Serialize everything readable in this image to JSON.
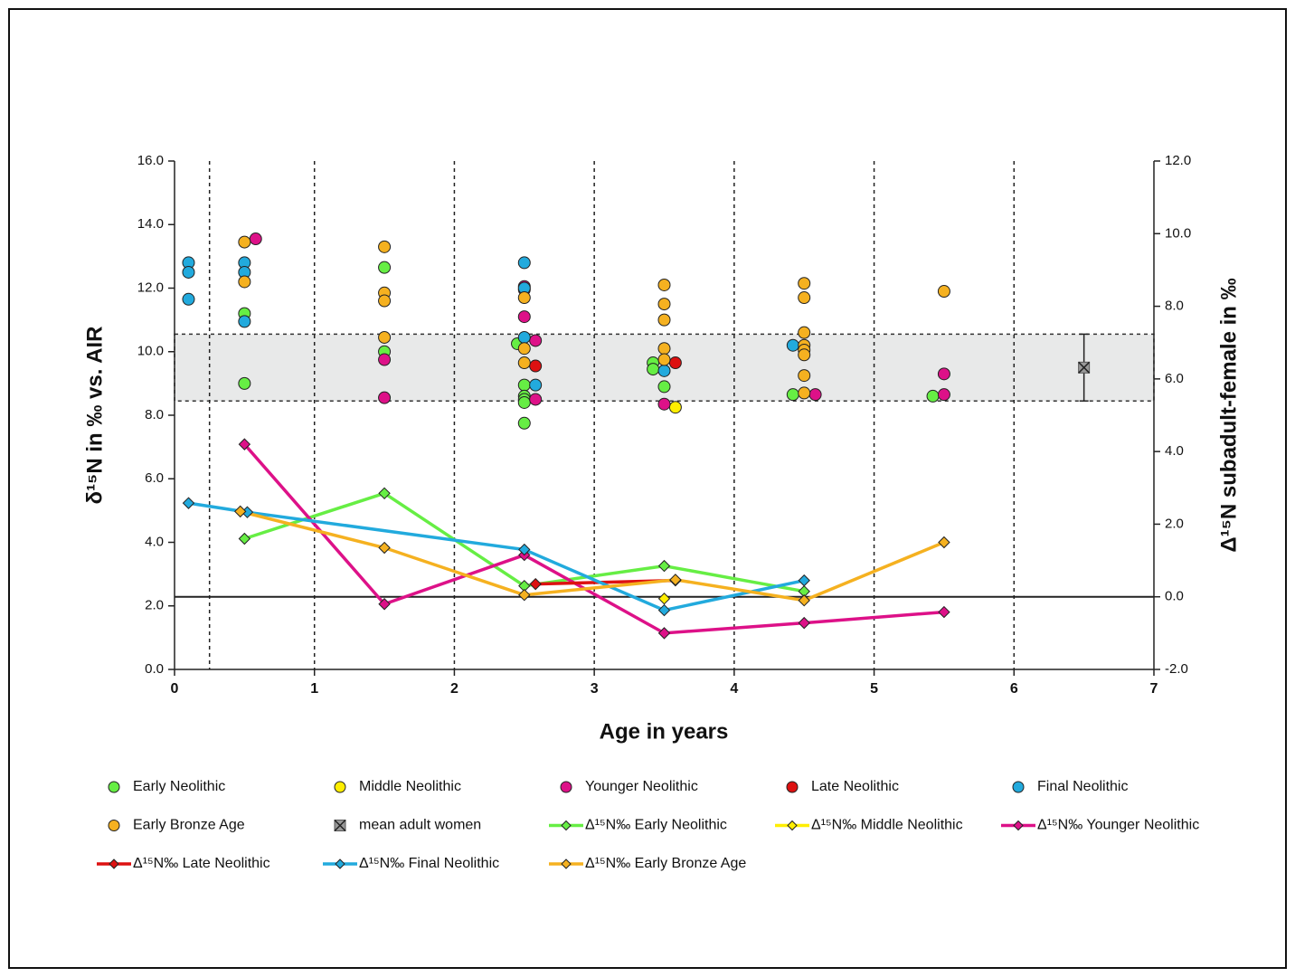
{
  "chart_data": {
    "type": "scatter",
    "xlabel": "Age in years",
    "ylabel": "δ¹⁵N in ‰ vs. AIR",
    "y2label": "Δ¹⁵N subadult-female in ‰",
    "xlim": [
      0,
      7
    ],
    "xticks": [
      0,
      1,
      2,
      3,
      4,
      5,
      6,
      7
    ],
    "ylim": [
      0,
      16
    ],
    "yticks": [
      {
        "value": 0,
        "label": "0.0"
      },
      {
        "value": 2,
        "label": "2.0"
      },
      {
        "value": 4,
        "label": "4.0"
      },
      {
        "value": 6,
        "label": "6.0"
      },
      {
        "value": 8,
        "label": "8.0"
      },
      {
        "value": 10,
        "label": "10.0"
      },
      {
        "value": 12,
        "label": "12.0"
      },
      {
        "value": 14,
        "label": "14.0"
      },
      {
        "value": 16,
        "label": "16.0"
      }
    ],
    "y2lim": [
      -2,
      12
    ],
    "y2ticks": [
      {
        "value": -2,
        "label": "-2.0"
      },
      {
        "value": 0,
        "label": "0.0"
      },
      {
        "value": 2,
        "label": "2.0"
      },
      {
        "value": 4,
        "label": "4.0"
      },
      {
        "value": 6,
        "label": "6.0"
      },
      {
        "value": 8,
        "label": "8.0"
      },
      {
        "value": 10,
        "label": "10.0"
      },
      {
        "value": 12,
        "label": "12.0"
      }
    ],
    "vlines": [
      0.25,
      1,
      2,
      3,
      4,
      5,
      6
    ],
    "band": [
      8.45,
      10.55
    ],
    "y2_refline": 0,
    "series": [
      {
        "name": "Early Neolithic",
        "color": "#66ee44",
        "mode": "markers",
        "marker": "circle",
        "x": [
          0.5,
          0.5,
          1.5,
          1.5,
          2.45,
          2.5,
          2.5,
          2.5,
          2.5,
          2.5,
          3.42,
          3.42,
          3.5,
          4.42,
          5.42
        ],
        "values": [
          11.2,
          9.0,
          12.65,
          10.0,
          10.25,
          8.95,
          8.6,
          8.5,
          8.4,
          7.75,
          9.65,
          9.45,
          8.9,
          8.65,
          8.6
        ]
      },
      {
        "name": "Middle Neolithic",
        "color": "#ffee00",
        "mode": "markers",
        "marker": "circle",
        "x": [
          3.58
        ],
        "values": [
          8.25
        ]
      },
      {
        "name": "Younger Neolithic",
        "color": "#dd1188",
        "mode": "markers",
        "marker": "circle",
        "x": [
          0.58,
          1.5,
          1.5,
          2.5,
          2.5,
          2.5,
          2.58,
          2.58,
          3.5,
          4.58,
          5.5,
          5.5
        ],
        "values": [
          13.55,
          9.75,
          8.55,
          12.05,
          11.95,
          11.1,
          10.35,
          8.5,
          8.35,
          8.65,
          9.3,
          8.65
        ]
      },
      {
        "name": "Late Neolithic",
        "color": "#dd1111",
        "mode": "markers",
        "marker": "circle",
        "x": [
          2.58,
          3.58
        ],
        "values": [
          9.55,
          9.65
        ]
      },
      {
        "name": "Final Neolithic",
        "color": "#22aadd",
        "mode": "markers",
        "marker": "circle",
        "x": [
          0.1,
          0.1,
          0.1,
          0.5,
          0.5,
          0.5,
          2.5,
          2.5,
          2.5,
          2.58,
          3.5,
          4.42
        ],
        "values": [
          12.8,
          12.5,
          11.65,
          12.8,
          12.5,
          10.95,
          12.8,
          12.0,
          10.45,
          8.95,
          9.4,
          10.2
        ]
      },
      {
        "name": "Early Bronze Age",
        "color": "#f5b120",
        "mode": "markers",
        "marker": "circle",
        "x": [
          0.5,
          0.5,
          1.5,
          1.5,
          1.5,
          1.5,
          2.5,
          2.5,
          2.5,
          3.5,
          3.5,
          3.5,
          3.5,
          3.5,
          4.5,
          4.5,
          4.5,
          4.5,
          4.5,
          4.5,
          4.5,
          4.5,
          5.5
        ],
        "values": [
          13.45,
          12.2,
          13.3,
          11.85,
          11.6,
          10.45,
          11.7,
          10.1,
          9.65,
          12.1,
          11.5,
          11.0,
          10.1,
          9.75,
          12.15,
          11.7,
          10.6,
          10.2,
          10.05,
          9.9,
          9.25,
          8.7,
          11.9
        ]
      },
      {
        "name": "mean adult women",
        "color": "#999999",
        "mode": "markers",
        "marker": "xbox",
        "x": [
          6.5
        ],
        "values": [
          9.5
        ],
        "error": [
          1.05
        ]
      },
      {
        "name": "Δ¹⁵N‰ Early Neolithic",
        "color": "#66ee44",
        "mode": "lines",
        "marker": "diamond",
        "axis": "y2",
        "x": [
          0.5,
          1.5,
          2.5,
          3.5,
          4.5
        ],
        "values": [
          1.6,
          2.85,
          0.3,
          0.85,
          0.15
        ]
      },
      {
        "name": "Δ¹⁵N‰ Middle Neolithic",
        "color": "#ffee00",
        "mode": "lines",
        "marker": "diamond",
        "axis": "y2",
        "x": [
          3.5
        ],
        "values": [
          -0.05
        ]
      },
      {
        "name": "Δ¹⁵N‰ Younger Neolithic",
        "color": "#dd1188",
        "mode": "lines",
        "marker": "diamond",
        "axis": "y2",
        "x": [
          0.5,
          1.5,
          2.5,
          3.5,
          4.5,
          5.5
        ],
        "values": [
          4.2,
          -0.2,
          1.15,
          -1.0,
          -0.72,
          -0.42
        ]
      },
      {
        "name": "Δ¹⁵N‰ Late Neolithic",
        "color": "#dd1111",
        "mode": "lines",
        "marker": "diamond",
        "axis": "y2",
        "x": [
          2.58,
          3.58
        ],
        "values": [
          0.35,
          0.45
        ]
      },
      {
        "name": "Δ¹⁵N‰ Final Neolithic",
        "color": "#22aadd",
        "mode": "lines",
        "marker": "diamond",
        "axis": "y2",
        "x": [
          0.1,
          0.52,
          2.5,
          3.5,
          4.5
        ],
        "values": [
          2.58,
          2.33,
          1.3,
          -0.37,
          0.45
        ]
      },
      {
        "name": "Δ¹⁵N‰ Early Bronze Age",
        "color": "#f5b120",
        "mode": "lines",
        "marker": "diamond",
        "axis": "y2",
        "x": [
          0.47,
          1.5,
          2.5,
          3.58,
          4.5,
          5.5
        ],
        "values": [
          2.35,
          1.35,
          0.05,
          0.47,
          -0.1,
          1.5
        ]
      }
    ]
  }
}
